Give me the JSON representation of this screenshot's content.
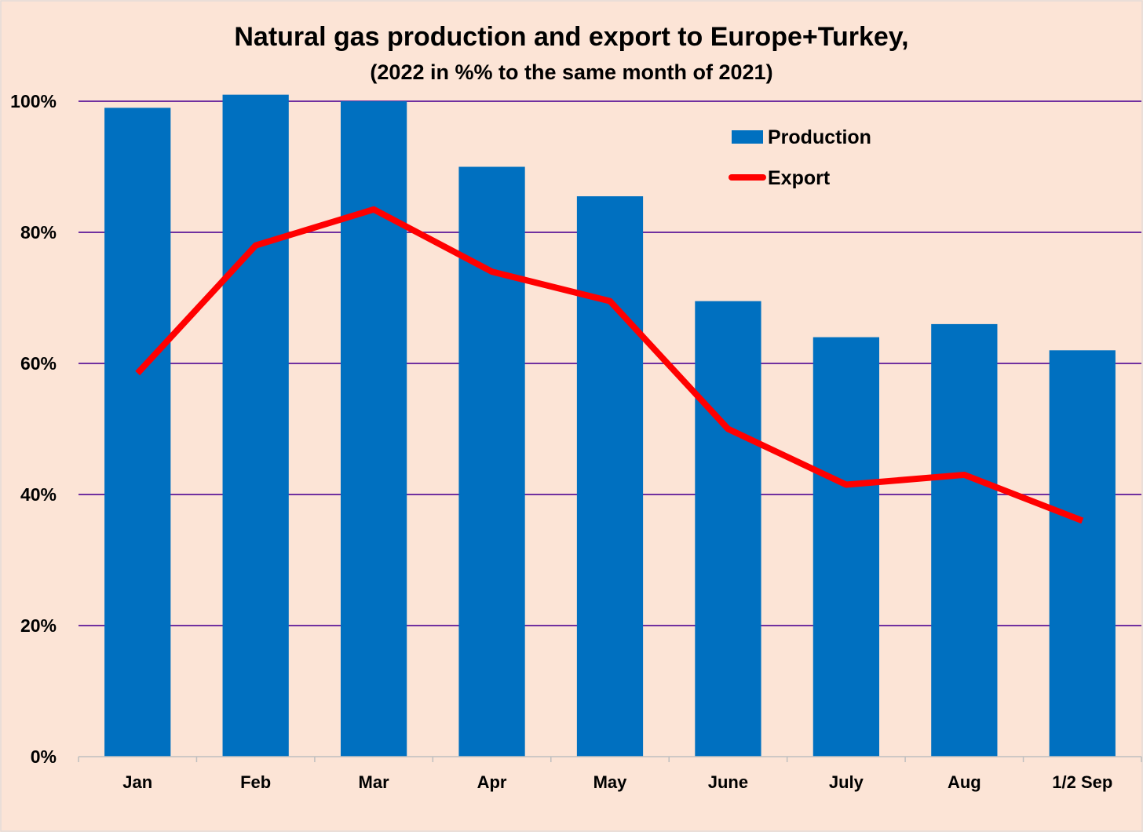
{
  "chart_data": {
    "type": "bar",
    "title": "Natural gas production and export to Europe+Turkey,",
    "subtitle": "(2022 in %% to the same month of 2021)",
    "categories": [
      "Jan",
      "Feb",
      "Mar",
      "Apr",
      "May",
      "June",
      "July",
      "Aug",
      "1/2 Sep"
    ],
    "series": [
      {
        "name": "Production",
        "type": "bar",
        "color": "#0070c0",
        "values": [
          99,
          101,
          100,
          90,
          85.5,
          69.5,
          64,
          66,
          62
        ]
      },
      {
        "name": "Export",
        "type": "line",
        "color": "#ff0000",
        "values": [
          58.5,
          78,
          83.5,
          74,
          69.5,
          50,
          41.5,
          43,
          36
        ]
      }
    ],
    "yticks": [
      "0%",
      "20%",
      "40%",
      "60%",
      "80%",
      "100%"
    ],
    "ylim": [
      0,
      100
    ],
    "grid": true,
    "grid_color": "#7030a0",
    "legend_position": "top-right"
  }
}
